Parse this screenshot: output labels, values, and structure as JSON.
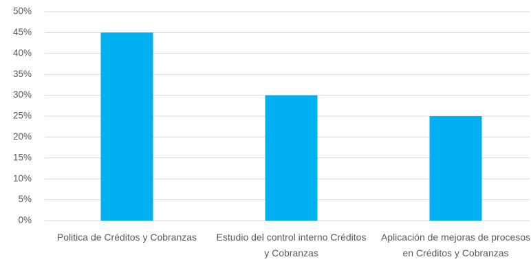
{
  "chart_data": {
    "type": "bar",
    "categories": [
      "Politica de Créditos y Cobranzas",
      "Estudio del control interno Créditos y Cobranzas",
      "Aplicación de mejoras de procesos en Créditos y Cobranzas"
    ],
    "values": [
      45,
      30,
      25
    ],
    "color": "#00b0f0",
    "ylim": [
      0,
      50
    ],
    "yticks": [
      {
        "value": 0,
        "label": "0%"
      },
      {
        "value": 5,
        "label": "5%"
      },
      {
        "value": 10,
        "label": "10%"
      },
      {
        "value": 15,
        "label": "15%"
      },
      {
        "value": 20,
        "label": "20%"
      },
      {
        "value": 25,
        "label": "25%"
      },
      {
        "value": 30,
        "label": "30%"
      },
      {
        "value": 35,
        "label": "35%"
      },
      {
        "value": 40,
        "label": "40%"
      },
      {
        "value": 45,
        "label": "45%"
      },
      {
        "value": 50,
        "label": "50%"
      }
    ],
    "grid": true
  }
}
